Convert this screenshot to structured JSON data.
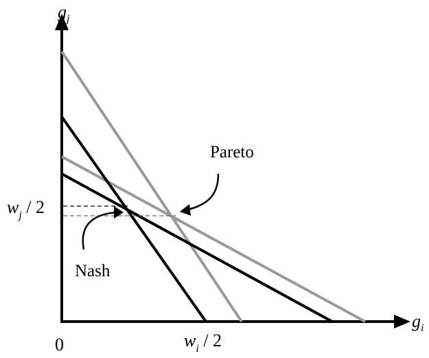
{
  "diagram": {
    "labels": {
      "y_axis": "g",
      "y_axis_sub": "j",
      "x_axis": "g",
      "x_axis_sub": "i",
      "origin": "0",
      "wj_base": "w",
      "wj_sub": "j",
      "wj_rest": " / 2",
      "wi_base": "w",
      "wi_sub": "i",
      "wi_rest": " / 2",
      "nash": "Nash",
      "pareto": "Pareto"
    },
    "colors": {
      "black_lines": "#000000",
      "gray_lines": "#999999",
      "background": "#ffffff"
    }
  }
}
